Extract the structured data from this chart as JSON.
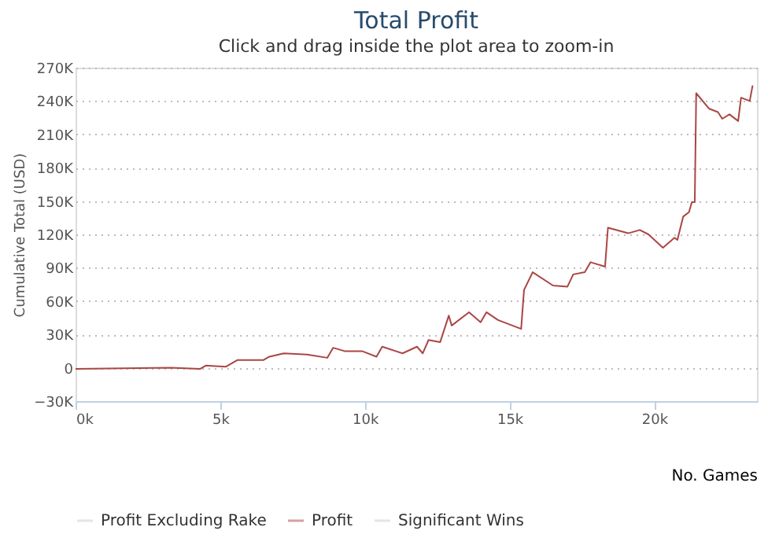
{
  "chart_data": {
    "type": "line",
    "title": "Total Profit",
    "subtitle": "Click and drag inside the plot area to zoom-in",
    "xlabel": "No. Games",
    "ylabel": "Cumulative Total (USD)",
    "x": [
      0,
      3300,
      4300,
      4500,
      5200,
      5600,
      6500,
      6700,
      7200,
      8000,
      8700,
      8900,
      9300,
      9900,
      10400,
      10600,
      11300,
      11800,
      12000,
      12200,
      12600,
      12900,
      13000,
      13600,
      14000,
      14200,
      14600,
      15400,
      15500,
      15800,
      16500,
      17000,
      17200,
      17600,
      17800,
      18300,
      18400,
      19100,
      19500,
      19800,
      20300,
      20700,
      20800,
      21000,
      21200,
      21300,
      21400,
      21450,
      21900,
      22200,
      22350,
      22600,
      22900,
      23000,
      23300,
      23400
    ],
    "series": [
      {
        "name": "Profit Excluding Rake",
        "color": "#cccccc",
        "values": [
          null,
          null,
          null,
          null,
          null,
          null,
          null,
          null,
          null,
          null,
          null,
          null,
          null,
          null,
          null,
          null,
          null,
          null,
          null,
          null,
          null,
          null,
          null,
          null,
          null,
          null,
          null,
          null,
          null,
          null,
          null,
          null,
          null,
          null,
          null,
          null,
          null,
          null,
          null,
          null,
          null,
          null,
          null,
          null,
          null,
          null,
          null,
          null,
          null,
          null,
          null,
          null,
          null,
          null,
          null,
          null
        ]
      },
      {
        "name": "Profit",
        "color": "#aa4643",
        "values": [
          -1000,
          0,
          -1000,
          2000,
          1000,
          7000,
          7000,
          10000,
          13000,
          12000,
          9000,
          18000,
          15000,
          15000,
          10000,
          19000,
          13000,
          19000,
          13000,
          25000,
          23000,
          47000,
          38000,
          50000,
          41000,
          50000,
          43000,
          35000,
          70000,
          86000,
          74000,
          73000,
          84000,
          86000,
          95000,
          91000,
          126000,
          121000,
          124000,
          120000,
          108000,
          117000,
          115000,
          136000,
          140000,
          149000,
          149000,
          247000,
          233000,
          230000,
          224000,
          228000,
          222000,
          243000,
          240000,
          254000
        ]
      },
      {
        "name": "Significant Wins",
        "type": "area",
        "color": "#cccccc",
        "values": [
          null,
          null,
          null,
          null,
          null,
          null,
          null,
          null,
          null,
          null,
          null,
          null,
          null,
          null,
          null,
          null,
          null,
          null,
          null,
          null,
          null,
          null,
          null,
          null,
          null,
          null,
          null,
          null,
          null,
          null,
          null,
          null,
          null,
          null,
          null,
          null,
          null,
          null,
          null,
          null,
          null,
          null,
          null,
          null,
          null,
          null,
          null,
          null,
          null,
          null,
          null,
          null,
          null,
          null,
          null,
          null
        ]
      }
    ],
    "xlim": [
      0,
      23550
    ],
    "xticks": [
      {
        "value": 0,
        "label": "0k"
      },
      {
        "value": 5000,
        "label": "5k"
      },
      {
        "value": 10000,
        "label": "10k"
      },
      {
        "value": 15000,
        "label": "15k"
      },
      {
        "value": 20000,
        "label": "20k"
      }
    ],
    "ylim": [
      -30000,
      270000
    ],
    "yticks": [
      {
        "value": -30000,
        "label": "−30K"
      },
      0,
      {
        "value": 30000,
        "label": "30K"
      },
      {
        "value": 60000,
        "label": "60K"
      },
      {
        "value": 90000,
        "label": "90K"
      },
      {
        "value": 120000,
        "label": "120K"
      },
      {
        "value": 150000,
        "label": "150K"
      },
      {
        "value": 180000,
        "label": "180K"
      },
      {
        "value": 210000,
        "label": "210K"
      },
      {
        "value": 240000,
        "label": "240K"
      },
      {
        "value": 270000,
        "label": "270K"
      }
    ],
    "grid": "y",
    "legend": "bottom",
    "line_style": "solid"
  }
}
